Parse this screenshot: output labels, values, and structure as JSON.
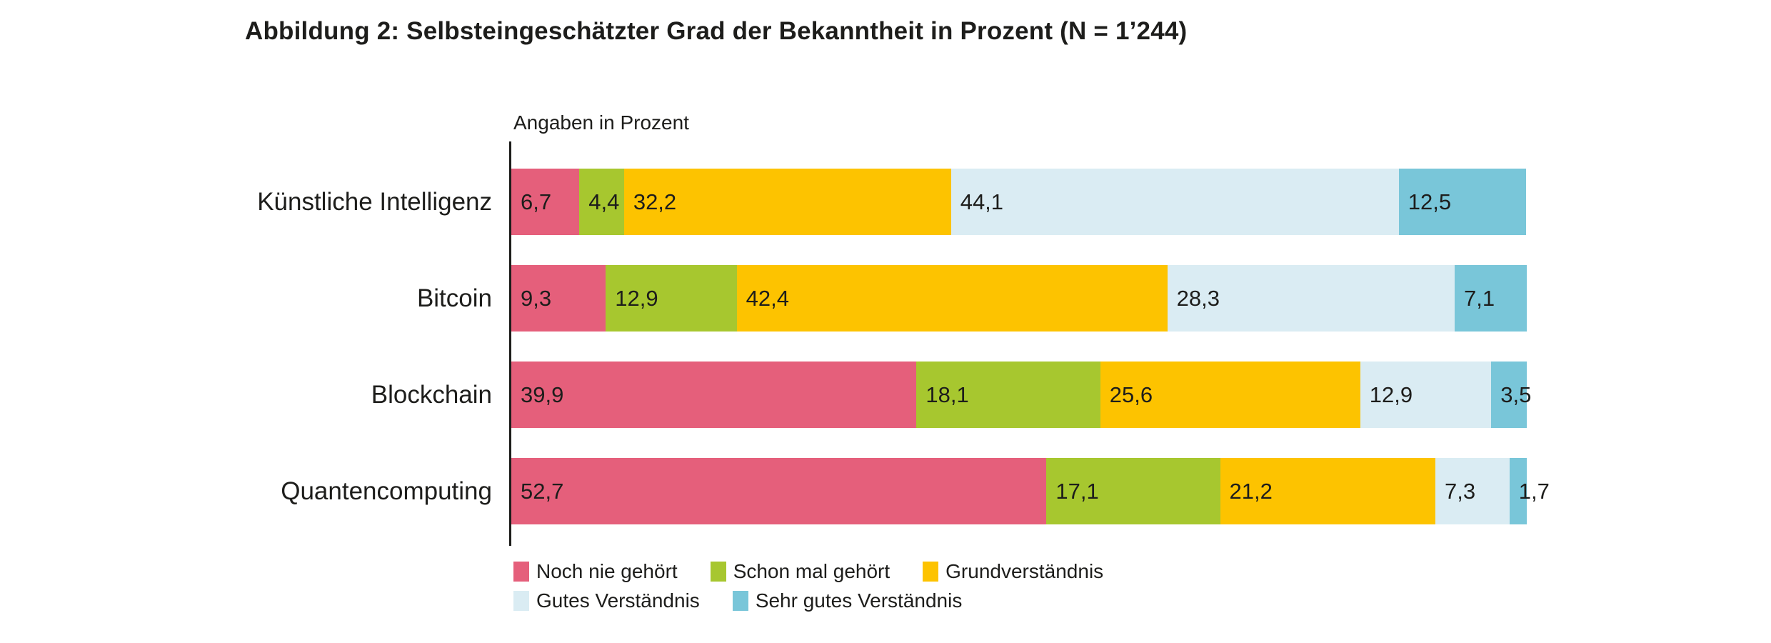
{
  "figure": {
    "title": "Abbildung 2: Selbsteingeschätzter Grad der Bekanntheit in Prozent (N = 1’244)",
    "axis_note": "Angaben in Prozent"
  },
  "chart_data": {
    "type": "bar",
    "orientation": "horizontal",
    "stacked": true,
    "unit": "percent",
    "xlim": [
      0,
      100
    ],
    "grid": false,
    "legend_position": "bottom",
    "categories": [
      "Künstliche Intelligenz",
      "Bitcoin",
      "Blockchain",
      "Quantencomputing"
    ],
    "series": [
      {
        "name": "Noch nie gehört",
        "color": "#e55f7b",
        "values": [
          6.7,
          9.3,
          39.9,
          52.7
        ],
        "labels": [
          "6,7",
          "9,3",
          "39,9",
          "52,7"
        ]
      },
      {
        "name": "Schon mal gehört",
        "color": "#a7c72f",
        "values": [
          4.4,
          12.9,
          18.1,
          17.1
        ],
        "labels": [
          "4,4",
          "12,9",
          "18,1",
          "17,1"
        ]
      },
      {
        "name": "Grundverständnis",
        "color": "#fdc300",
        "values": [
          32.2,
          42.4,
          25.6,
          21.2
        ],
        "labels": [
          "32,2",
          "42,4",
          "25,6",
          "21,2"
        ]
      },
      {
        "name": "Gutes Verständnis",
        "color": "#daecf3",
        "values": [
          44.1,
          28.3,
          12.9,
          7.3
        ],
        "labels": [
          "44,1",
          "28,3",
          "12,9",
          "7,3"
        ]
      },
      {
        "name": "Sehr gutes Verständnis",
        "color": "#79c6d9",
        "values": [
          12.5,
          7.1,
          3.5,
          1.7
        ],
        "labels": [
          "12,5",
          "7,1",
          "3,5",
          "1,7"
        ]
      }
    ]
  },
  "legend": {
    "rows": [
      [
        0,
        1,
        2
      ],
      [
        3,
        4
      ]
    ]
  }
}
